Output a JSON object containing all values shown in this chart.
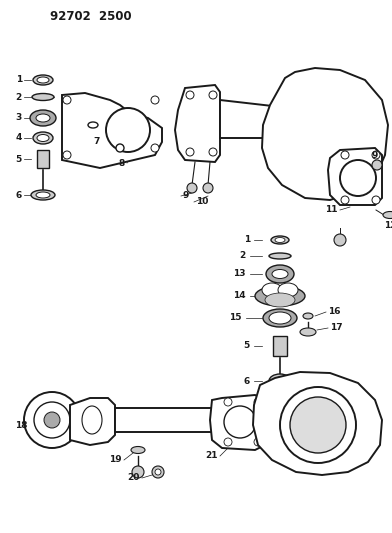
{
  "title": "92702 2500",
  "bg_color": "#ffffff",
  "line_color": "#1a1a1a",
  "gray_color": "#888888",
  "dark_gray": "#555555",
  "title_fontsize": 9,
  "label_fontsize": 6.5,
  "fig_width": 3.92,
  "fig_height": 5.33,
  "dpi": 100
}
